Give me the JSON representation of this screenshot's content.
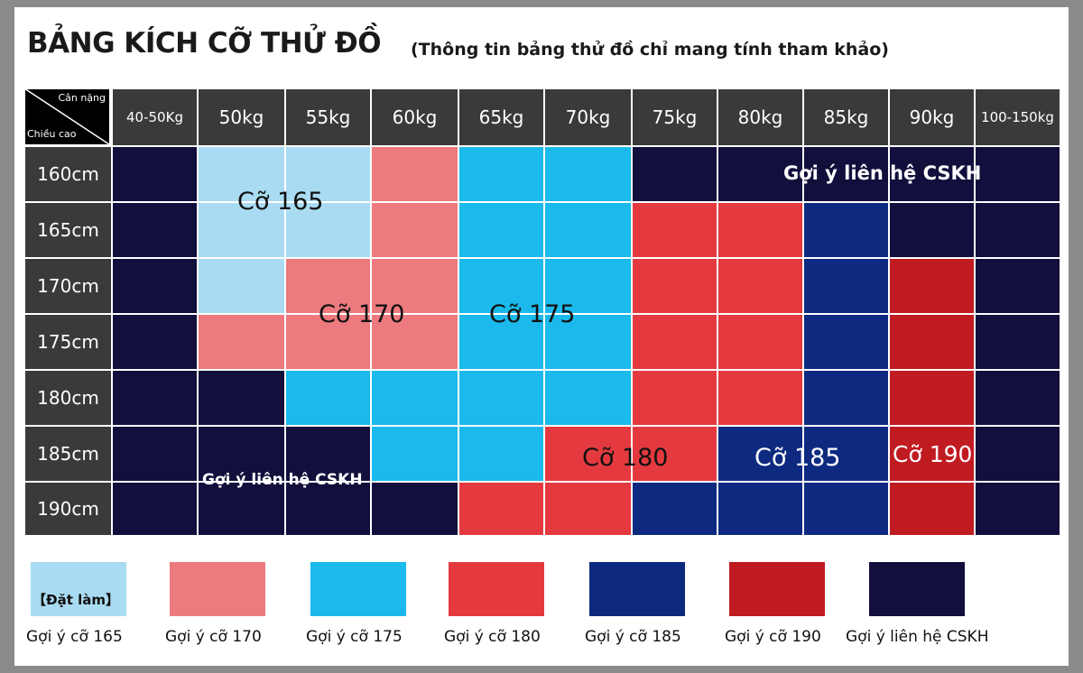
{
  "title": "BẢNG KÍCH CỠ THỬ ĐỒ",
  "subtitle": "(Thông tin bảng thử đồ chỉ mang tính tham khảo)",
  "corner": {
    "top": "Cân nặng",
    "bottom": "Chiều cao"
  },
  "weights": [
    "40-50Kg",
    "50kg",
    "55kg",
    "60kg",
    "65kg",
    "70kg",
    "75kg",
    "80kg",
    "85kg",
    "90kg",
    "100-150kg"
  ],
  "heights": [
    "160cm",
    "165cm",
    "170cm",
    "175cm",
    "180cm",
    "185cm",
    "190cm"
  ],
  "colors": {
    "cskh": "#120f3c",
    "s165": "#a9dcf2",
    "s170": "#ec7a7e",
    "s175": "#1bb9ec",
    "s180": "#e43a3f",
    "s185": "#0d2a80",
    "s190": "#c11b22",
    "header": "#3a3a3a",
    "grid_line": "#ffffff"
  },
  "matrix": [
    [
      "cskh",
      "s165",
      "s165",
      "s170",
      "s175",
      "s175",
      "cskh",
      "cskh",
      "cskh",
      "cskh",
      "cskh"
    ],
    [
      "cskh",
      "s165",
      "s165",
      "s170",
      "s175",
      "s175",
      "s180",
      "s180",
      "s185",
      "cskh",
      "cskh"
    ],
    [
      "cskh",
      "s165",
      "s170",
      "s170",
      "s175",
      "s175",
      "s180",
      "s180",
      "s185",
      "s190",
      "cskh"
    ],
    [
      "cskh",
      "s170",
      "s170",
      "s170",
      "s175",
      "s175",
      "s180",
      "s180",
      "s185",
      "s190",
      "cskh"
    ],
    [
      "cskh",
      "cskh",
      "s175",
      "s175",
      "s175",
      "s175",
      "s180",
      "s180",
      "s185",
      "s190",
      "cskh"
    ],
    [
      "cskh",
      "cskh",
      "cskh",
      "s175",
      "s175",
      "s180",
      "s180",
      "s185",
      "s185",
      "s190",
      "cskh"
    ],
    [
      "cskh",
      "cskh",
      "cskh",
      "cskh",
      "s180",
      "s180",
      "s185",
      "s185",
      "s185",
      "s190",
      "cskh"
    ]
  ],
  "zones": {
    "s165": "Cỡ 165",
    "s170": "Cỡ 170",
    "s175": "Cỡ 175",
    "s180": "Cỡ 180",
    "s185": "Cỡ 185",
    "s190": "Cỡ 190",
    "cskh_top": "Gợi ý liên hệ CSKH",
    "cskh_bottom": "Gợi ý liên hệ CSKH"
  },
  "legend": {
    "made_to_order": "【Đặt làm】",
    "items": [
      {
        "key": "s165",
        "label": "Gợi ý cỡ 165"
      },
      {
        "key": "s170",
        "label": "Gợi ý cỡ 170"
      },
      {
        "key": "s175",
        "label": "Gợi ý cỡ 175"
      },
      {
        "key": "s180",
        "label": "Gợi ý cỡ 180"
      },
      {
        "key": "s185",
        "label": "Gợi ý cỡ 185"
      },
      {
        "key": "s190",
        "label": "Gợi ý cỡ 190"
      },
      {
        "key": "cskh",
        "label": "Gợi ý liên hệ CSKH"
      }
    ]
  }
}
